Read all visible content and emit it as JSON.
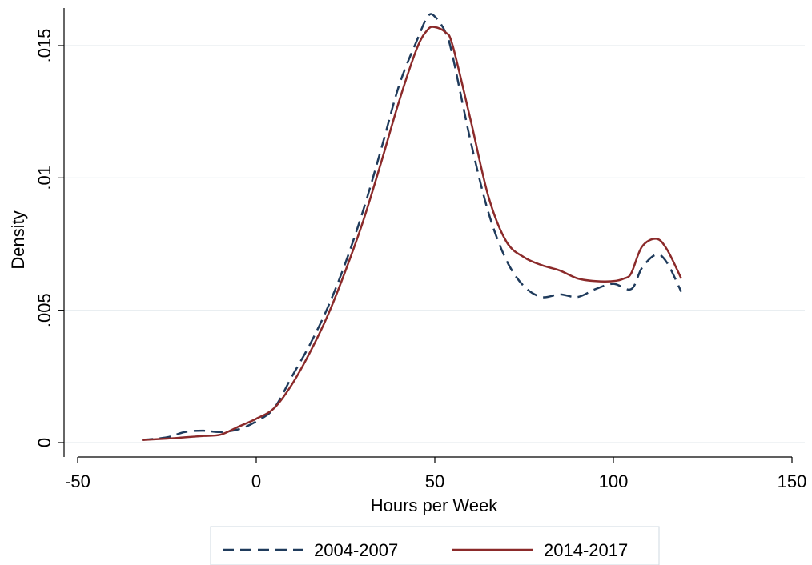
{
  "chart_data": {
    "type": "line",
    "title": "",
    "xlabel": "Hours per Week",
    "ylabel": "Density",
    "xlim": [
      -50,
      150
    ],
    "ylim": [
      0,
      0.016
    ],
    "x_ticks": [
      -50,
      0,
      50,
      100,
      150
    ],
    "x_tick_labels": [
      "-50",
      "0",
      "50",
      "100",
      "150"
    ],
    "y_ticks": [
      0,
      0.005,
      0.01,
      0.015
    ],
    "y_tick_labels": [
      "0",
      ".005",
      ".01",
      ".015"
    ],
    "grid": "horizontal",
    "legend_position": "bottom",
    "series": [
      {
        "name": "2004-2007",
        "color": "#1f3b5c",
        "style": "dashed",
        "x": [
          -32,
          -25,
          -20,
          -15,
          -10,
          -5,
          0,
          5,
          10,
          15,
          20,
          25,
          30,
          35,
          40,
          45,
          48,
          50,
          53,
          55,
          60,
          65,
          70,
          75,
          80,
          85,
          90,
          95,
          100,
          105,
          108,
          112,
          115,
          119
        ],
        "y": [
          0.0001,
          0.0002,
          0.0004,
          0.00045,
          0.0004,
          0.0005,
          0.0008,
          0.0013,
          0.0025,
          0.0037,
          0.0051,
          0.0068,
          0.0088,
          0.0111,
          0.0135,
          0.0152,
          0.0161,
          0.0161,
          0.0155,
          0.0146,
          0.0114,
          0.0087,
          0.0069,
          0.0059,
          0.0055,
          0.0056,
          0.0055,
          0.0058,
          0.006,
          0.0058,
          0.0066,
          0.0071,
          0.0068,
          0.0057
        ]
      },
      {
        "name": "2014-2017",
        "color": "#8b2a2a",
        "style": "solid",
        "x": [
          -32,
          -25,
          -20,
          -15,
          -10,
          -5,
          0,
          5,
          10,
          15,
          20,
          25,
          30,
          35,
          40,
          45,
          48,
          50,
          53,
          55,
          60,
          65,
          70,
          75,
          80,
          85,
          90,
          95,
          100,
          103,
          105,
          108,
          112,
          115,
          119
        ],
        "y": [
          0.0001,
          0.00015,
          0.0002,
          0.00025,
          0.0003,
          0.0006,
          0.0009,
          0.0013,
          0.0022,
          0.0034,
          0.0048,
          0.0065,
          0.0084,
          0.0106,
          0.0129,
          0.0149,
          0.0156,
          0.0157,
          0.0155,
          0.015,
          0.0122,
          0.0093,
          0.0076,
          0.007,
          0.0067,
          0.0065,
          0.0062,
          0.0061,
          0.0061,
          0.0062,
          0.0064,
          0.0074,
          0.0077,
          0.0073,
          0.0062
        ]
      }
    ]
  }
}
